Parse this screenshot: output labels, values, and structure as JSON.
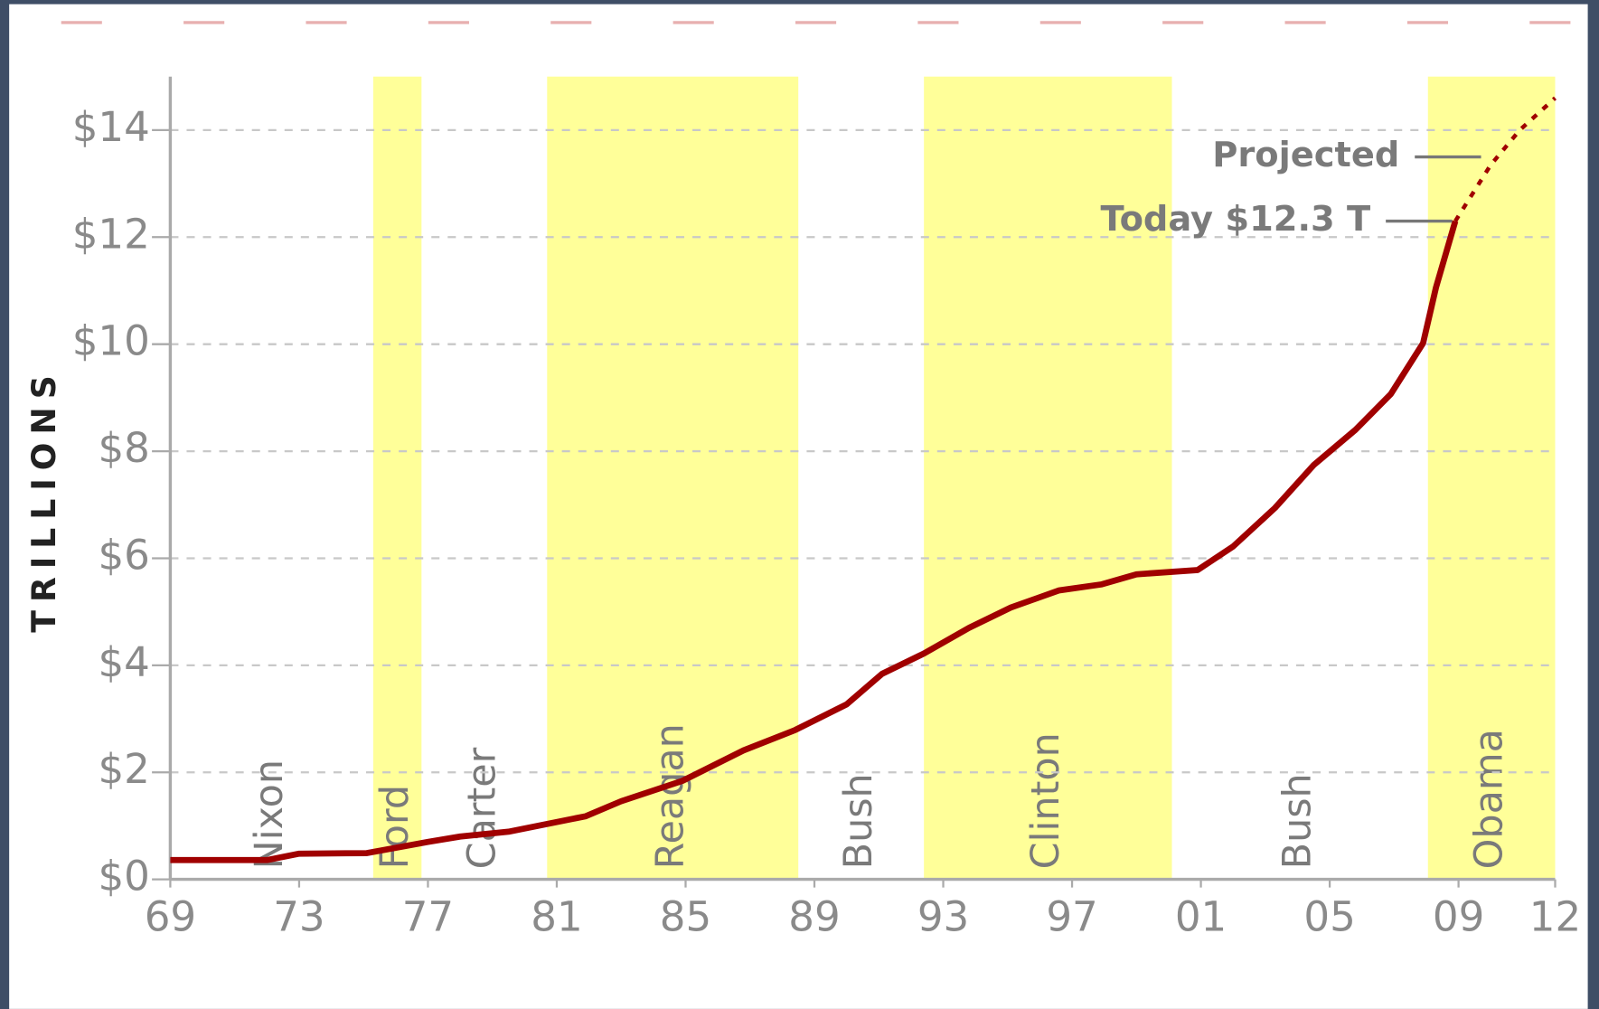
{
  "chart_data": {
    "type": "line",
    "y_label": "TRILLIONS",
    "xlim": [
      1969,
      2012
    ],
    "ylim": [
      0,
      15
    ],
    "xticks": [
      {
        "value": 1969,
        "label": "69"
      },
      {
        "value": 1973,
        "label": "73"
      },
      {
        "value": 1977,
        "label": "77"
      },
      {
        "value": 1981,
        "label": "81"
      },
      {
        "value": 1985,
        "label": "85"
      },
      {
        "value": 1989,
        "label": "89"
      },
      {
        "value": 1993,
        "label": "93"
      },
      {
        "value": 1997,
        "label": "97"
      },
      {
        "value": 2001,
        "label": "01"
      },
      {
        "value": 2005,
        "label": "05"
      },
      {
        "value": 2009,
        "label": "09"
      },
      {
        "value": 2012,
        "label": "12"
      }
    ],
    "yticks": [
      {
        "value": 0,
        "label": "$0"
      },
      {
        "value": 2,
        "label": "$2"
      },
      {
        "value": 4,
        "label": "$4"
      },
      {
        "value": 6,
        "label": "$6"
      },
      {
        "value": 8,
        "label": "$8"
      },
      {
        "value": 10,
        "label": "$10"
      },
      {
        "value": 12,
        "label": "$12"
      },
      {
        "value": 14,
        "label": "$14"
      }
    ],
    "grid": true,
    "band_color": "#ffff99",
    "presidents": [
      {
        "name": "Nixon",
        "start": 1969,
        "end": 1975.3,
        "shaded": false
      },
      {
        "name": "Ford",
        "start": 1975.3,
        "end": 1976.8,
        "shaded": true
      },
      {
        "name": "Carter",
        "start": 1976.8,
        "end": 1980.7,
        "shaded": false
      },
      {
        "name": "Reagan",
        "start": 1980.7,
        "end": 1988.5,
        "shaded": true
      },
      {
        "name": "Bush",
        "start": 1988.5,
        "end": 1992.4,
        "shaded": false
      },
      {
        "name": "Clinton",
        "start": 1992.4,
        "end": 2000.1,
        "shaded": true
      },
      {
        "name": "Bush",
        "start": 2000.1,
        "end": 2008.05,
        "shaded": false
      },
      {
        "name": "Obama",
        "start": 2008.05,
        "end": 2012,
        "shaded": true
      }
    ],
    "series": [
      {
        "color": "#a00000",
        "dashed": false,
        "x": [
          1969,
          1972,
          1973,
          1975.1,
          1977,
          1978,
          1979.5,
          1981.9,
          1983,
          1984.9,
          1986.8,
          1988.4,
          1990,
          1991.1,
          1992.4,
          1993.8,
          1995.1,
          1996.6,
          1997.9,
          1999,
          2000.9,
          2002,
          2003.3,
          2004.5,
          2005.8,
          2006.9,
          2007.9,
          2008.3,
          2008.9
        ],
        "values": [
          0.36,
          0.36,
          0.48,
          0.49,
          0.7,
          0.8,
          0.89,
          1.18,
          1.46,
          1.84,
          2.41,
          2.79,
          3.27,
          3.84,
          4.22,
          4.7,
          5.08,
          5.4,
          5.51,
          5.7,
          5.78,
          6.22,
          6.94,
          7.74,
          8.4,
          9.07,
          10.02,
          11.06,
          12.3
        ]
      },
      {
        "color": "#a00000",
        "dashed": true,
        "x": [
          2008.9,
          2010,
          2010.9,
          2012
        ],
        "values": [
          12.3,
          13.35,
          14.0,
          14.6
        ]
      }
    ],
    "annotations": [
      {
        "text": "Projected",
        "x": 2009.7,
        "y": 13.5
      },
      {
        "text": "Today $12.3 T",
        "x": 2008.8,
        "y": 12.3
      }
    ]
  }
}
